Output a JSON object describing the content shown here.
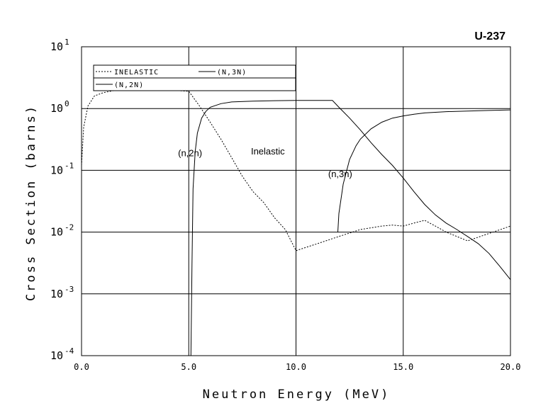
{
  "chart_data": {
    "type": "line",
    "title": "U-237",
    "xlabel": "Neutron Energy (MeV)",
    "ylabel": "Cross Section (barns)",
    "xlim": [
      0,
      20
    ],
    "ylim": [
      0.0001,
      10
    ],
    "yscale": "log",
    "grid": true,
    "x_ticks": [
      "0.0",
      "5.0",
      "10.0",
      "15.0",
      "20.0"
    ],
    "y_ticks": [
      {
        "base": "10",
        "exp": "1"
      },
      {
        "base": "10",
        "exp": "0"
      },
      {
        "base": "10",
        "exp": "-1"
      },
      {
        "base": "10",
        "exp": "-2"
      },
      {
        "base": "10",
        "exp": "-3"
      },
      {
        "base": "10",
        "exp": "-4"
      }
    ],
    "legend": {
      "placement": "top-left",
      "entries": [
        "INELASTIC",
        "(N,3N)",
        "(N,2N)"
      ]
    },
    "series": [
      {
        "name": "INELASTIC",
        "style": "dashed",
        "x": [
          0.0,
          0.1,
          0.3,
          0.6,
          1.0,
          1.5,
          2.0,
          2.5,
          3.0,
          3.5,
          4.0,
          4.5,
          5.0,
          5.5,
          6.0,
          6.5,
          7.0,
          7.5,
          8.0,
          8.5,
          9.0,
          9.5,
          10.0,
          11.0,
          12.0,
          13.0,
          14.0,
          14.5,
          15.0,
          15.5,
          16.0,
          16.5,
          17.0,
          17.5,
          18.0,
          19.0,
          20.0
        ],
        "y": [
          0.12,
          0.5,
          1.1,
          1.6,
          1.8,
          1.95,
          2.0,
          2.0,
          2.0,
          2.0,
          1.98,
          1.95,
          1.9,
          1.1,
          0.6,
          0.32,
          0.16,
          0.08,
          0.045,
          0.03,
          0.017,
          0.011,
          0.005,
          0.0065,
          0.0085,
          0.011,
          0.0125,
          0.013,
          0.0125,
          0.014,
          0.0155,
          0.0125,
          0.01,
          0.0085,
          0.0072,
          0.0095,
          0.0125
        ]
      },
      {
        "name": "(N,2N)",
        "style": "solid",
        "x": [
          5.1,
          5.15,
          5.2,
          5.3,
          5.4,
          5.6,
          5.8,
          6.0,
          6.5,
          7.0,
          8.0,
          9.0,
          10.0,
          11.0,
          11.7,
          12.0,
          12.5,
          13.0,
          13.5,
          14.0,
          14.5,
          15.0,
          15.5,
          16.0,
          16.5,
          17.0,
          17.5,
          18.0,
          18.5,
          19.0,
          19.5,
          20.0
        ],
        "y": [
          0.0001,
          0.003,
          0.05,
          0.2,
          0.4,
          0.7,
          0.9,
          1.05,
          1.2,
          1.28,
          1.32,
          1.34,
          1.35,
          1.35,
          1.35,
          1.05,
          0.7,
          0.45,
          0.28,
          0.18,
          0.12,
          0.075,
          0.045,
          0.028,
          0.019,
          0.014,
          0.011,
          0.0085,
          0.0065,
          0.0045,
          0.0028,
          0.0017
        ]
      },
      {
        "name": "(N,3N)",
        "style": "solid",
        "x": [
          11.95,
          12.0,
          12.2,
          12.5,
          12.8,
          13.0,
          13.5,
          14.0,
          14.5,
          15.0,
          15.5,
          16.0,
          17.0,
          18.0,
          19.0,
          20.0
        ],
        "y": [
          0.01,
          0.02,
          0.06,
          0.15,
          0.25,
          0.32,
          0.47,
          0.6,
          0.7,
          0.76,
          0.81,
          0.85,
          0.89,
          0.91,
          0.93,
          0.95
        ]
      }
    ],
    "annotations": [
      {
        "text": "(n,2n)",
        "x": 4.5,
        "y": 0.17
      },
      {
        "text": "Inelastic",
        "x": 7.9,
        "y": 0.18
      },
      {
        "text": "(n,3n)",
        "x": 11.5,
        "y": 0.078
      }
    ]
  }
}
